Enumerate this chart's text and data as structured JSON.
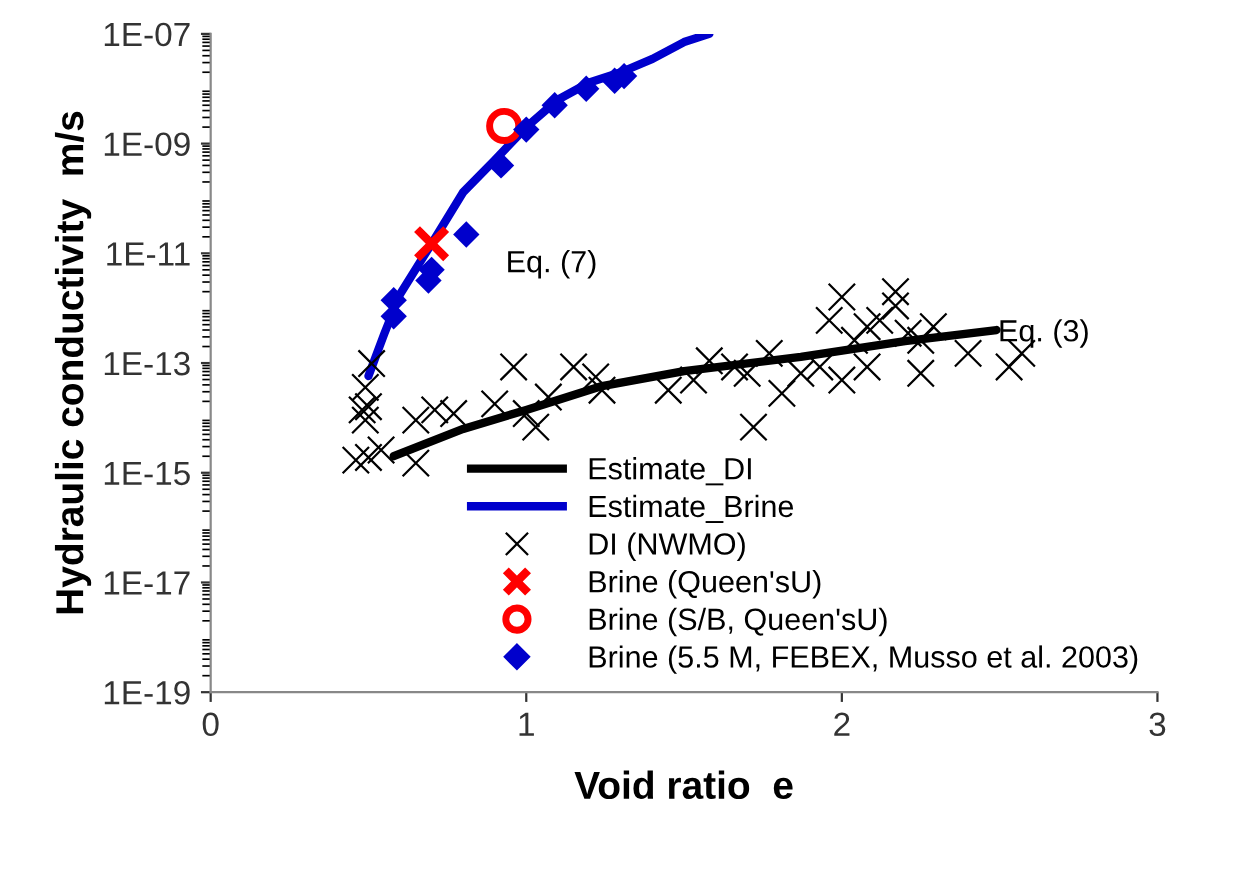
{
  "chart_data": {
    "type": "scatter",
    "xlabel": "Void ratio  e",
    "ylabel": "Hydraulic conductivity  m/s",
    "log": "y",
    "grid": false,
    "legend": "bottom right",
    "xlim": [
      0,
      3
    ],
    "xticks": [
      0,
      1,
      2,
      3
    ],
    "ylim": [
      1e-19,
      1e-07
    ],
    "yticks": [
      {
        "value": 1e-19,
        "label": "1E-19"
      },
      {
        "value": 1e-17,
        "label": "1E-17"
      },
      {
        "value": 1e-15,
        "label": "1E-15"
      },
      {
        "value": 1e-13,
        "label": "1E-13"
      },
      {
        "value": 1e-11,
        "label": "1E-11"
      },
      {
        "value": 1e-09,
        "label": "1E-09"
      },
      {
        "value": 1e-07,
        "label": "1E-07"
      }
    ],
    "annotations": [
      "Eq. (7)",
      "Eq. (3)"
    ],
    "series": [
      {
        "name": "Estimate_DI",
        "type": "line",
        "marker": "none",
        "color": "#000000",
        "x": [
          0.58,
          0.8,
          1.0,
          1.24,
          1.5,
          1.87,
          2.2,
          2.49
        ],
        "values": [
          2e-15,
          6.3e-15,
          1.4e-14,
          3.8e-14,
          7.1e-14,
          1.3e-13,
          2.5e-13,
          4e-13
        ]
      },
      {
        "name": "Estimate_Brine",
        "type": "line",
        "marker": "none",
        "color": "#0000cc",
        "x": [
          0.5,
          0.55,
          0.6,
          0.7,
          0.8,
          0.9,
          1.0,
          1.1,
          1.2,
          1.3,
          1.4,
          1.5,
          1.58
        ],
        "values": [
          5.8e-14,
          3.4e-13,
          1.8e-12,
          1.5e-11,
          1.3e-10,
          5e-10,
          2e-09,
          6.3e-09,
          1.3e-08,
          2e-08,
          3.5e-08,
          7.1e-08,
          1e-07
        ]
      },
      {
        "name": "DI (NWMO)",
        "type": "scatter",
        "marker": "cross",
        "color": "#000000",
        "x": [
          0.51,
          0.49,
          0.48,
          0.49,
          0.46,
          0.5,
          0.54,
          0.65,
          0.71,
          0.65,
          0.77,
          0.9,
          0.96,
          1.0,
          1.03,
          1.07,
          1.15,
          1.22,
          1.24,
          1.45,
          1.53,
          1.58,
          1.66,
          1.7,
          1.72,
          1.77,
          1.81,
          1.87,
          1.93,
          1.96,
          2.0,
          2.04,
          2.08,
          2.12,
          2.17,
          2.21,
          2.25,
          2.29,
          2.4,
          2.57,
          2.53,
          2.25,
          2.08,
          0.5,
          2.0,
          2.17
        ],
        "values": [
          9.8e-14,
          3.6e-14,
          1.4e-14,
          9.1e-15,
          1.7e-15,
          1.9e-15,
          2.6e-15,
          9.1e-15,
          1.4e-14,
          1.5e-15,
          1.2e-14,
          1.8e-14,
          8.5e-14,
          1.2e-14,
          6.8e-15,
          2.4e-14,
          8.5e-14,
          5.6e-14,
          3.2e-14,
          3.2e-14,
          4.9e-14,
          1.1e-13,
          8.5e-14,
          6.5e-14,
          6.8e-15,
          1.5e-13,
          2.8e-14,
          6.5e-14,
          8.5e-14,
          6e-13,
          4.9e-14,
          2.6e-13,
          4.6e-13,
          6e-13,
          1.1e-12,
          3.5e-13,
          2.6e-13,
          4.6e-13,
          1.5e-13,
          1.5e-13,
          8.5e-14,
          6.5e-14,
          8.5e-14,
          1.6e-14,
          1.6e-12,
          2e-12
        ]
      },
      {
        "name": "Brine (Queen'sU)",
        "type": "scatter",
        "marker": "cross",
        "color": "#ff0000",
        "x": [
          0.7
        ],
        "values": [
          1.5e-11
        ]
      },
      {
        "name": "Brine (S/B, Queen'sU)",
        "type": "scatter",
        "marker": "circle",
        "color": "#ff0000",
        "x": [
          0.93
        ],
        "values": [
          2.1e-09
        ]
      },
      {
        "name": "Brine (5.5 M, FEBEX, Musso et al. 2003)",
        "type": "scatter",
        "marker": "diamond",
        "color": "#0000cc",
        "x": [
          0.58,
          0.58,
          0.69,
          0.7,
          0.81,
          0.92,
          1.0,
          1.09,
          1.19,
          1.28,
          1.31
        ],
        "values": [
          1.4e-12,
          7.1e-13,
          3.2e-12,
          5e-12,
          2.2e-11,
          4e-10,
          1.8e-09,
          5e-09,
          1e-08,
          1.4e-08,
          1.7e-08
        ]
      }
    ]
  }
}
